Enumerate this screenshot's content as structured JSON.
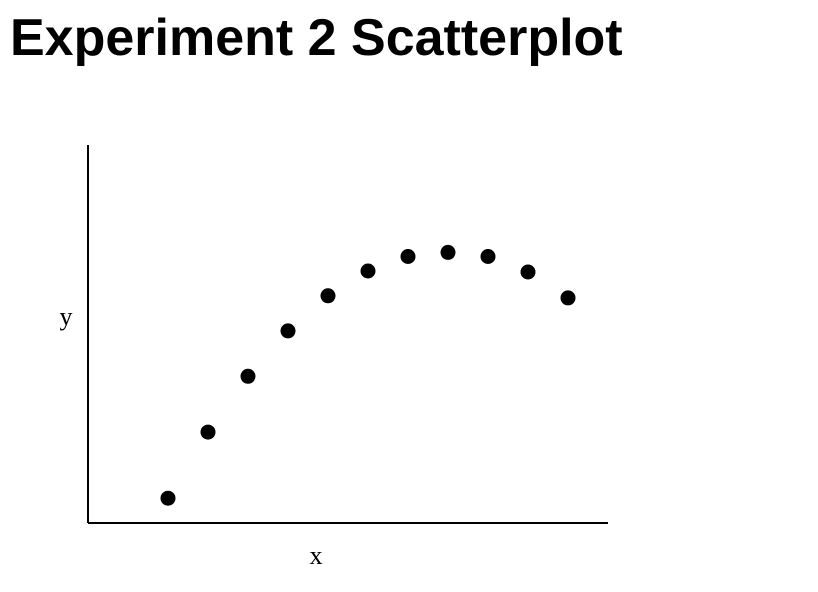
{
  "chart_data": {
    "type": "scatter",
    "title": "Experiment 2 Scatterplot",
    "xlabel": "x",
    "ylabel": "y",
    "x": [
      1,
      2,
      3,
      4,
      5,
      6,
      7,
      8,
      9,
      10,
      11
    ],
    "y": [
      1.0,
      4.2,
      6.9,
      9.1,
      10.8,
      12.0,
      12.7,
      12.9,
      12.7,
      11.95,
      10.7
    ],
    "xlim": [
      -1,
      12
    ],
    "ylim": [
      -0.2,
      18.1
    ],
    "grid": false,
    "legend": "none",
    "point_color": "#000000",
    "axis_color": "#000000"
  }
}
